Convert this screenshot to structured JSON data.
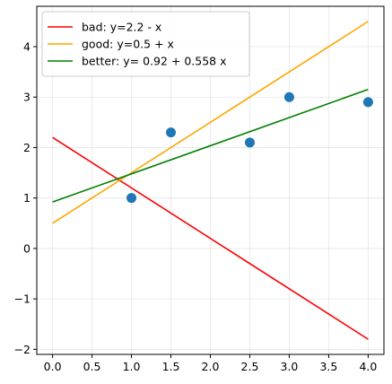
{
  "chart_data": {
    "type": "scatter",
    "title": "",
    "xlabel": "",
    "ylabel": "",
    "xlim": [
      -0.2,
      4.2
    ],
    "ylim": [
      -2.1,
      4.8
    ],
    "grid": true,
    "legend_position": "upper-left",
    "x_ticks": [
      0.0,
      0.5,
      1.0,
      1.5,
      2.0,
      2.5,
      3.0,
      3.5,
      4.0
    ],
    "x_tick_labels": [
      "0.0",
      "0.5",
      "1.0",
      "1.5",
      "2.0",
      "2.5",
      "3.0",
      "3.5",
      "4.0"
    ],
    "y_ticks": [
      -2,
      -1,
      0,
      1,
      2,
      3,
      4
    ],
    "y_tick_labels": [
      "−2",
      "−1",
      "0",
      "1",
      "2",
      "3",
      "4"
    ],
    "points": {
      "color": "#1f77b4",
      "x": [
        1.0,
        1.5,
        2.5,
        3.0,
        4.0
      ],
      "y": [
        1.0,
        2.3,
        2.1,
        3.0,
        2.9
      ]
    },
    "series": [
      {
        "name": "bad: y=2.2 - x",
        "color": "#ff0000",
        "x": [
          0,
          4
        ],
        "y": [
          2.2,
          -1.8
        ]
      },
      {
        "name": "good: y=0.5 + x",
        "color": "#ffa500",
        "x": [
          0,
          4
        ],
        "y": [
          0.5,
          4.5
        ]
      },
      {
        "name": "better: y= 0.92 + 0.558 x",
        "color": "#008000",
        "x": [
          0,
          4
        ],
        "y": [
          0.92,
          3.152
        ]
      }
    ]
  }
}
